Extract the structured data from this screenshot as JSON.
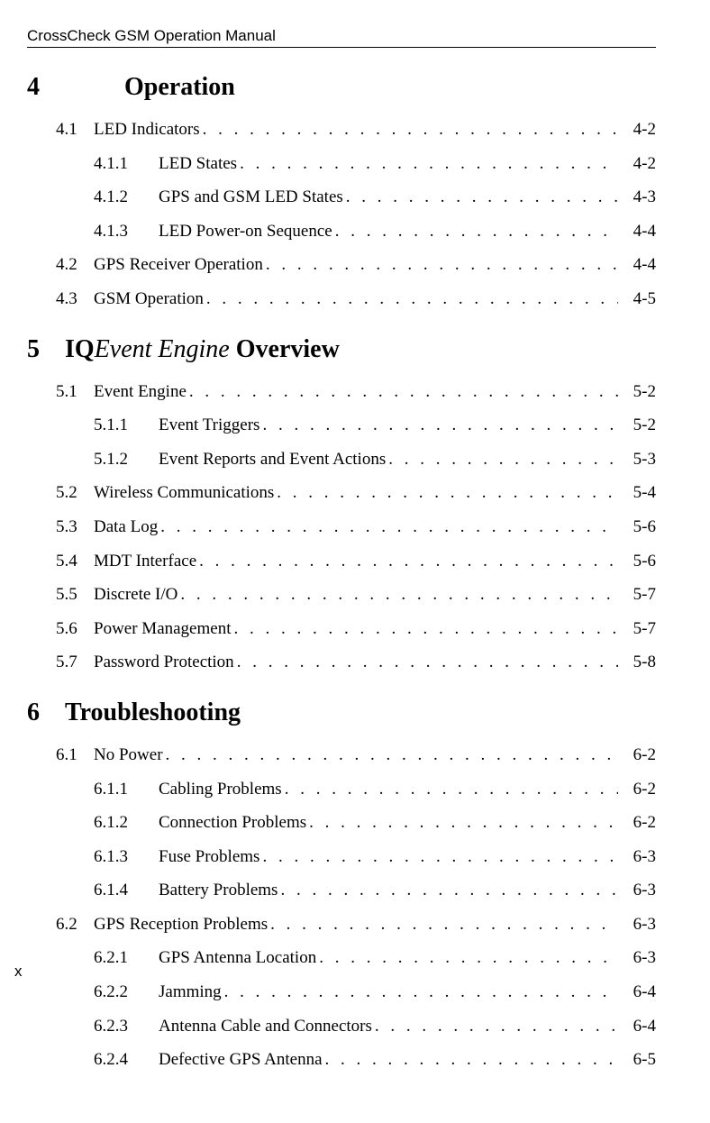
{
  "header": "CrossCheck GSM Operation Manual",
  "page_number": "x",
  "chapters": [
    {
      "number": "4",
      "title": "Operation",
      "title_prefix": "",
      "title_italic": "",
      "title_suffix": "",
      "entries": [
        {
          "level": 1,
          "num": "4.1",
          "title": "LED Indicators",
          "page": "4-2"
        },
        {
          "level": 2,
          "num": "4.1.1",
          "title": "LED States",
          "page": "4-2"
        },
        {
          "level": 2,
          "num": "4.1.2",
          "title": "GPS and GSM LED States",
          "page": "4-3"
        },
        {
          "level": 2,
          "num": "4.1.3",
          "title": "LED Power-on Sequence",
          "page": "4-4"
        },
        {
          "level": 1,
          "num": "4.2",
          "title": "GPS Receiver Operation",
          "page": "4-4"
        },
        {
          "level": 1,
          "num": "4.3",
          "title": "GSM Operation",
          "page": "4-5"
        }
      ]
    },
    {
      "number": "5",
      "title_prefix": "IQ",
      "title_italic": "Event Engine",
      "title_suffix": " Overview",
      "entries": [
        {
          "level": 1,
          "num": "5.1",
          "title": "Event Engine",
          "page": "5-2"
        },
        {
          "level": 2,
          "num": "5.1.1",
          "title": "Event Triggers",
          "page": "5-2"
        },
        {
          "level": 2,
          "num": "5.1.2",
          "title": "Event Reports and Event Actions",
          "page": "5-3"
        },
        {
          "level": 1,
          "num": "5.2",
          "title": "Wireless Communications",
          "page": "5-4"
        },
        {
          "level": 1,
          "num": "5.3",
          "title": "Data Log",
          "page": "5-6"
        },
        {
          "level": 1,
          "num": "5.4",
          "title": "MDT Interface",
          "page": "5-6"
        },
        {
          "level": 1,
          "num": "5.5",
          "title": "Discrete I/O",
          "page": "5-7"
        },
        {
          "level": 1,
          "num": "5.6",
          "title": "Power Management",
          "page": "5-7"
        },
        {
          "level": 1,
          "num": "5.7",
          "title": "Password Protection",
          "page": "5-8"
        }
      ]
    },
    {
      "number": "6",
      "title": "Troubleshooting",
      "title_prefix": "",
      "title_italic": "",
      "title_suffix": "",
      "entries": [
        {
          "level": 1,
          "num": "6.1",
          "title": "No Power",
          "page": "6-2"
        },
        {
          "level": 2,
          "num": "6.1.1",
          "title": "Cabling Problems",
          "page": "6-2"
        },
        {
          "level": 2,
          "num": "6.1.2",
          "title": "Connection Problems",
          "page": "6-2"
        },
        {
          "level": 2,
          "num": "6.1.3",
          "title": "Fuse Problems",
          "page": "6-3"
        },
        {
          "level": 2,
          "num": "6.1.4",
          "title": "Battery Problems",
          "page": "6-3"
        },
        {
          "level": 1,
          "num": "6.2",
          "title": "GPS Reception Problems",
          "page": "6-3"
        },
        {
          "level": 2,
          "num": "6.2.1",
          "title": "GPS Antenna Location",
          "page": "6-3"
        },
        {
          "level": 2,
          "num": "6.2.2",
          "title": "Jamming",
          "page": "6-4"
        },
        {
          "level": 2,
          "num": "6.2.3",
          "title": "Antenna Cable and Connectors",
          "page": "6-4"
        },
        {
          "level": 2,
          "num": "6.2.4",
          "title": "Defective GPS Antenna",
          "page": "6-5"
        }
      ]
    }
  ],
  "dots_string": " .  .  .  .  .  .  .  .  .  .  .  .  .  .  .  .  .  .  .  .  .  .  .  .  .  .  .  .  .  .  .  .  .  .  .  .  . "
}
